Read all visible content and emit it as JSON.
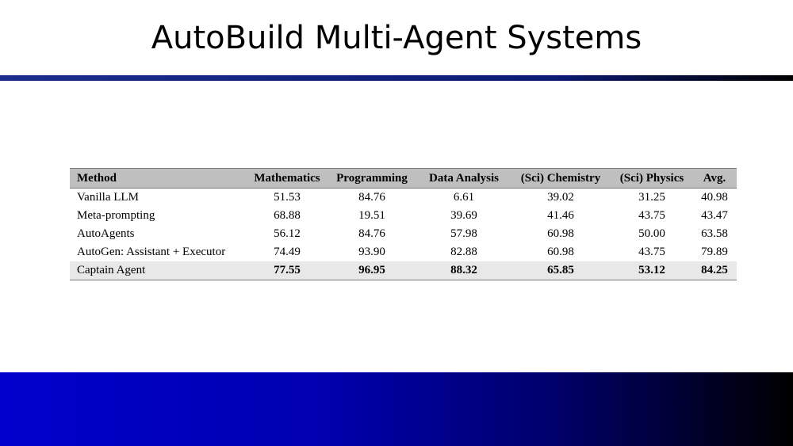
{
  "slide": {
    "title": "AutoBuild Multi-Agent Systems"
  },
  "table": {
    "headers": [
      "Method",
      "Mathematics",
      "Programming",
      "Data Analysis",
      "(Sci) Chemistry",
      "(Sci) Physics",
      "Avg."
    ],
    "rows": [
      [
        "Vanilla LLM",
        "51.53",
        "84.76",
        "6.61",
        "39.02",
        "31.25",
        "40.98"
      ],
      [
        "Meta-prompting",
        "68.88",
        "19.51",
        "39.69",
        "41.46",
        "43.75",
        "43.47"
      ],
      [
        "AutoAgents",
        "56.12",
        "84.76",
        "57.98",
        "60.98",
        "50.00",
        "63.58"
      ],
      [
        "AutoGen: Assistant + Executor",
        "74.49",
        "93.90",
        "82.88",
        "60.98",
        "43.75",
        "79.89"
      ],
      [
        "Captain Agent",
        "77.55",
        "96.95",
        "88.32",
        "65.85",
        "53.12",
        "84.25"
      ]
    ]
  },
  "colors": {
    "header_bg": "#bfbfbf",
    "highlight_row_bg": "#e8e8e8",
    "rule_blue": "#1c2c8c",
    "footer_blue": "#0000cc"
  }
}
